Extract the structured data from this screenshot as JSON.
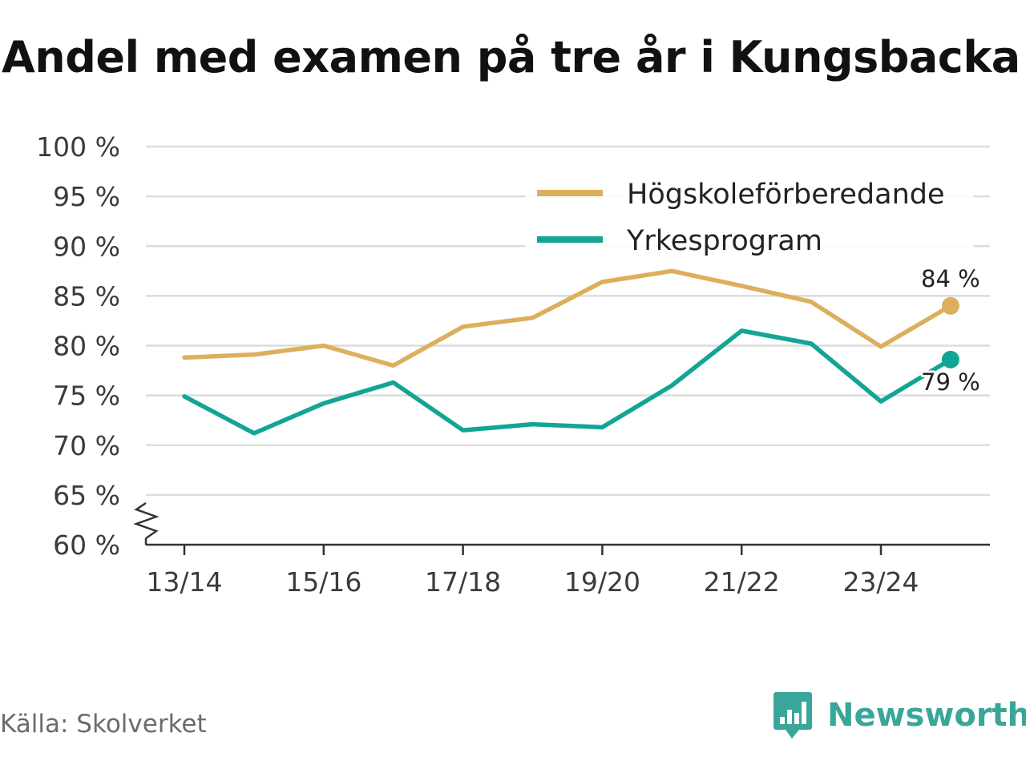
{
  "title": "Andel med examen på tre år i Kungsbacka",
  "source": "Källa: Skolverket",
  "brand": {
    "name": "Newsworthy",
    "icon": "newsworthy-logo-icon",
    "color": "#3aa699"
  },
  "chart_data": {
    "type": "line",
    "title": "Andel med examen på tre år i Kungsbacka",
    "xlabel": "",
    "ylabel": "",
    "categories": [
      "13/14",
      "14/15",
      "15/16",
      "16/17",
      "17/18",
      "18/19",
      "19/20",
      "20/21",
      "21/22",
      "22/23",
      "23/24",
      "24/25"
    ],
    "x_tick_labels": [
      "13/14",
      "15/16",
      "17/18",
      "19/20",
      "21/22",
      "23/24"
    ],
    "y_tick_labels": [
      "60 %",
      "65 %",
      "70 %",
      "75 %",
      "80 %",
      "85 %",
      "90 %",
      "95 %",
      "100 %"
    ],
    "ylim": [
      60,
      100
    ],
    "y_axis_break": true,
    "grid": true,
    "legend": "top-right",
    "series": [
      {
        "name": "Högskoleförberedande",
        "color": "#dcaf5d",
        "values": [
          78.8,
          79.1,
          80.0,
          78.0,
          81.9,
          82.8,
          86.4,
          87.5,
          86.0,
          84.4,
          79.9,
          84.0
        ],
        "end_label": "84 %"
      },
      {
        "name": "Yrkesprogram",
        "color": "#12a596",
        "values": [
          74.9,
          71.2,
          74.2,
          76.3,
          71.5,
          72.1,
          71.8,
          76.0,
          81.5,
          80.2,
          74.4,
          78.6
        ],
        "end_label": "79 %"
      }
    ]
  }
}
